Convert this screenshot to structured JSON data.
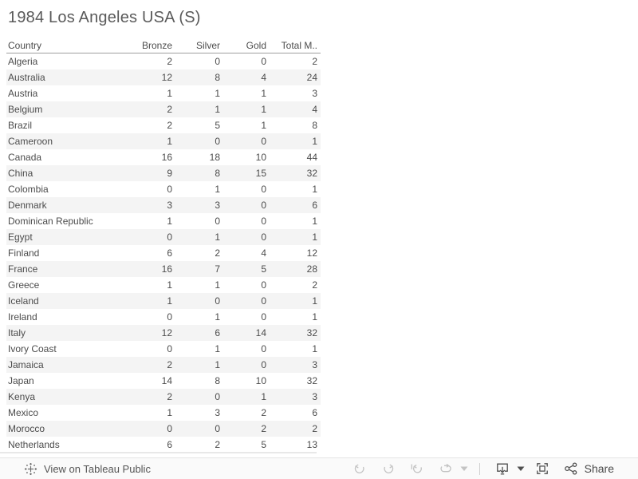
{
  "header": {
    "title": "1984 Los Angeles USA (S)"
  },
  "table": {
    "columns": [
      "Country",
      "Bronze",
      "Silver",
      "Gold",
      "Total M.."
    ],
    "rows": [
      [
        "Algeria",
        "2",
        "0",
        "0",
        "2"
      ],
      [
        "Australia",
        "12",
        "8",
        "4",
        "24"
      ],
      [
        "Austria",
        "1",
        "1",
        "1",
        "3"
      ],
      [
        "Belgium",
        "2",
        "1",
        "1",
        "4"
      ],
      [
        "Brazil",
        "2",
        "5",
        "1",
        "8"
      ],
      [
        "Cameroon",
        "1",
        "0",
        "0",
        "1"
      ],
      [
        "Canada",
        "16",
        "18",
        "10",
        "44"
      ],
      [
        "China",
        "9",
        "8",
        "15",
        "32"
      ],
      [
        "Colombia",
        "0",
        "1",
        "0",
        "1"
      ],
      [
        "Denmark",
        "3",
        "3",
        "0",
        "6"
      ],
      [
        "Dominican Republic",
        "1",
        "0",
        "0",
        "1"
      ],
      [
        "Egypt",
        "0",
        "1",
        "0",
        "1"
      ],
      [
        "Finland",
        "6",
        "2",
        "4",
        "12"
      ],
      [
        "France",
        "16",
        "7",
        "5",
        "28"
      ],
      [
        "Greece",
        "1",
        "1",
        "0",
        "2"
      ],
      [
        "Iceland",
        "1",
        "0",
        "0",
        "1"
      ],
      [
        "Ireland",
        "0",
        "1",
        "0",
        "1"
      ],
      [
        "Italy",
        "12",
        "6",
        "14",
        "32"
      ],
      [
        "Ivory Coast",
        "0",
        "1",
        "0",
        "1"
      ],
      [
        "Jamaica",
        "2",
        "1",
        "0",
        "3"
      ],
      [
        "Japan",
        "14",
        "8",
        "10",
        "32"
      ],
      [
        "Kenya",
        "2",
        "0",
        "1",
        "3"
      ],
      [
        "Mexico",
        "1",
        "3",
        "2",
        "6"
      ],
      [
        "Morocco",
        "0",
        "0",
        "2",
        "2"
      ],
      [
        "Netherlands",
        "6",
        "2",
        "5",
        "13"
      ]
    ]
  },
  "toolbar": {
    "view_on_label": "View on Tableau Public",
    "share_label": "Share",
    "icons": {
      "logo": "tableau-logo-icon",
      "undo": "undo-icon",
      "redo": "redo-icon",
      "replay": "replay-icon",
      "refresh": "refresh-icon",
      "caret": "caret-down-icon",
      "download": "download-icon",
      "fullscreen": "fullscreen-icon",
      "share": "share-icon"
    }
  },
  "colors": {
    "title_text": "#5a5a5a",
    "table_text": "#4c4c4c",
    "row_band": "#f4f4f4",
    "header_rule": "#9e9e9e",
    "sheet_edge": "#e8e8e8",
    "toolbar_bg": "#fafafa",
    "toolbar_border": "#e4e4e4",
    "toolbar_text": "#555555",
    "icon_strong": "#4f4f4f",
    "icon_muted": "#c3c3c3",
    "separator": "#cfcfcf"
  }
}
